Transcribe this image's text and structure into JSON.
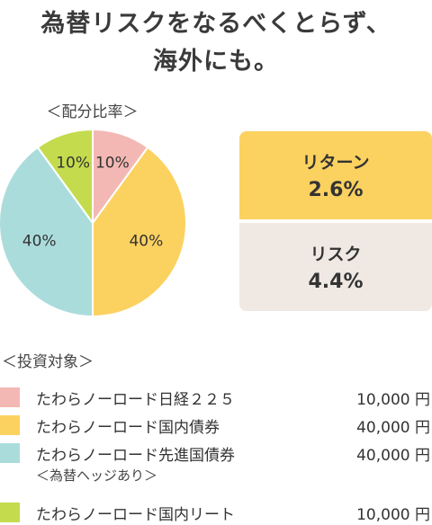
{
  "headline": [
    "為替リスクをなるべくとらず、",
    "海外にも。"
  ],
  "chart_data": {
    "type": "pie",
    "title": "＜配分比率＞",
    "slices": [
      {
        "label": "10%",
        "value": 10,
        "color": "#f4b8b4"
      },
      {
        "label": "40%",
        "value": 40,
        "color": "#fbd160"
      },
      {
        "label": "40%",
        "value": 40,
        "color": "#abdcdc"
      },
      {
        "label": "10%",
        "value": 10,
        "color": "#c4db4e"
      }
    ]
  },
  "metrics": {
    "return": {
      "label": "リターン",
      "value": "2.6%",
      "color": "#fbd160"
    },
    "risk": {
      "label": "リスク",
      "value": "4.4%",
      "color": "#efe8e3"
    }
  },
  "assets": {
    "title": "＜投資対象＞",
    "items": [
      {
        "name": "たわらノーロード日経２２５",
        "amount": "10,000 円",
        "color": "#f4b8b4"
      },
      {
        "name": "たわらノーロード国内債券",
        "amount": "40,000 円",
        "color": "#fbd160"
      },
      {
        "name": "たわらノーロード先進国債券",
        "amount": "40,000 円",
        "color": "#abdcdc"
      },
      {
        "name": "たわらノーロード国内リート",
        "amount": "10,000 円",
        "color": "#c4db4e"
      }
    ],
    "note": "＜為替ヘッジあり＞"
  }
}
